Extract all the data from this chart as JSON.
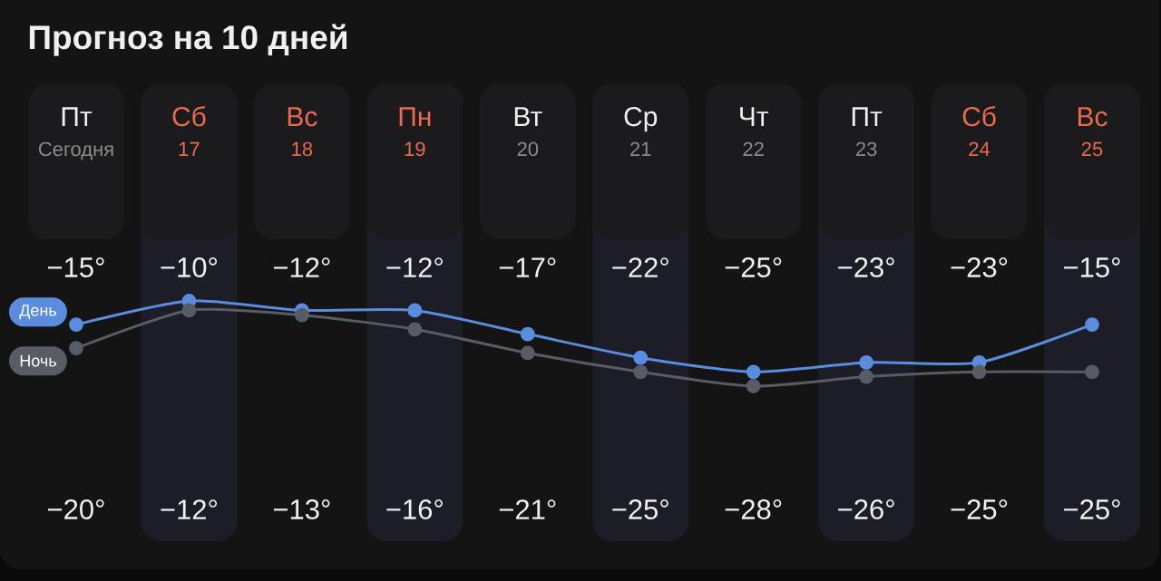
{
  "chart_data": {
    "type": "line",
    "title": "Прогноз на 10 дней",
    "categories": [
      "Пт",
      "Сб",
      "Вс",
      "Пн",
      "Вт",
      "Ср",
      "Чт",
      "Пт",
      "Сб",
      "Вс"
    ],
    "x2lim": [
      16,
      25
    ],
    "x2ticks": [
      {
        "value": 16,
        "label": "Сегодня"
      },
      17,
      18,
      19,
      20,
      21,
      22,
      23,
      24,
      25
    ],
    "series": [
      {
        "name": "День",
        "color": "#5a8ddd",
        "values": [
          -15,
          -10,
          -12,
          -12,
          -17,
          -22,
          -25,
          -23,
          -23,
          -15
        ],
        "value_labels": [
          "−15°",
          "−10°",
          "−12°",
          "−12°",
          "−17°",
          "−22°",
          "−25°",
          "−23°",
          "−23°",
          "−15°"
        ]
      },
      {
        "name": "Ночь",
        "color": "#585c64",
        "values": [
          -20,
          -12,
          -13,
          -16,
          -21,
          -25,
          -28,
          -26,
          -25,
          -25
        ],
        "value_labels": [
          "−20°",
          "−12°",
          "−13°",
          "−16°",
          "−21°",
          "−25°",
          "−28°",
          "−26°",
          "−25°",
          "−25°"
        ]
      }
    ],
    "marker": "circle",
    "line_style": "solid",
    "legend": "left"
  }
}
